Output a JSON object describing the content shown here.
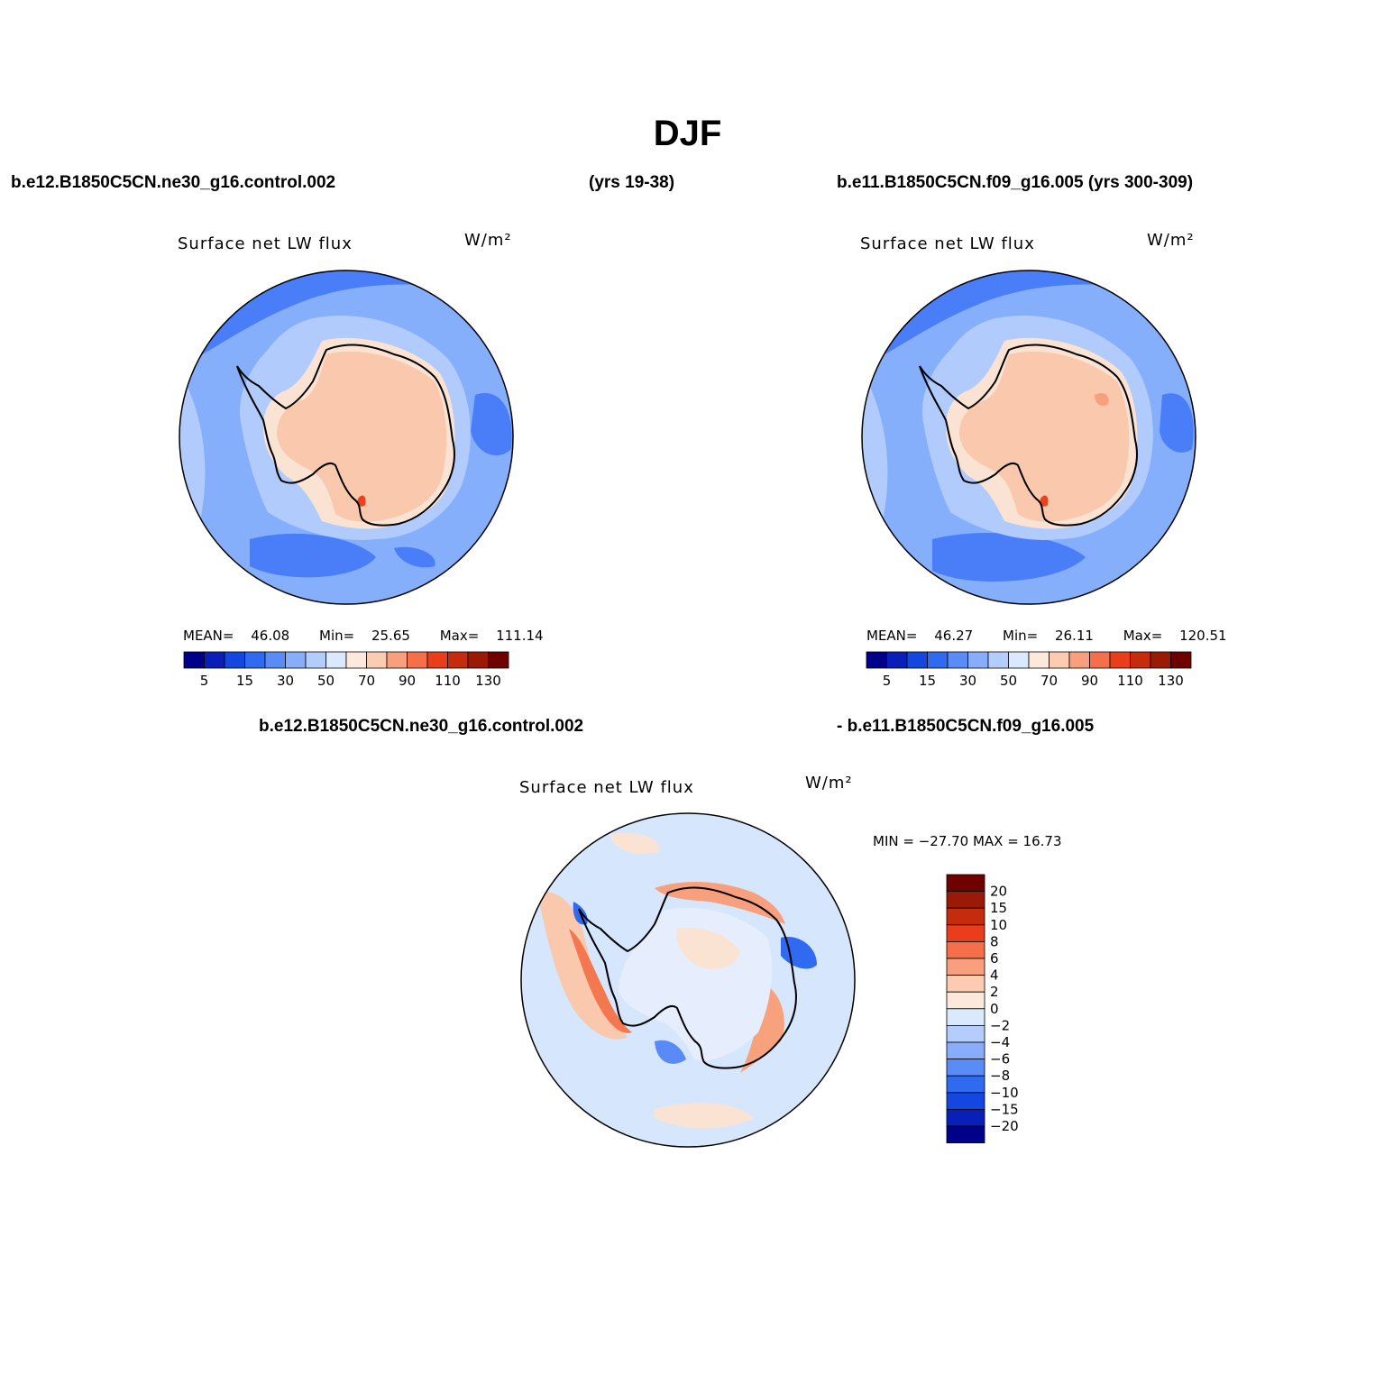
{
  "page": {
    "title": "DJF",
    "header_left_case": "b.e12.B1850C5CN.ne30_g16.control.002",
    "header_left_years": "(yrs 19-38)",
    "header_right": "b.e11.B1850C5CN.f09_g16.005 (yrs 300-309)",
    "diff_header_left": "b.e12.B1850C5CN.ne30_g16.control.002",
    "diff_header_right": "- b.e11.B1850C5CN.f09_g16.005"
  },
  "colors": {
    "land": "#f9c8ad",
    "coast_band": "#fbe3d4",
    "ocean": "#85aefb",
    "ocean_light": "#b1cbfd",
    "ocean_dark": "#4a7ef8",
    "diff_bg": "#d6e6fd",
    "diff_pos": "#f7a27c",
    "diff_neg": "#5a8af6"
  },
  "chart_data": [
    {
      "type": "heatmap",
      "projection": "south polar stereographic",
      "title": "Surface net LW flux",
      "units": "W/m²",
      "mean": "46.08",
      "min": "25.65",
      "max": "111.14",
      "stats_labels": {
        "mean": "MEAN=",
        "min": "Min=",
        "max": "Max="
      },
      "levels": [
        5,
        10,
        15,
        20,
        30,
        40,
        50,
        60,
        70,
        80,
        90,
        100,
        110,
        120,
        130
      ],
      "tick_labels": [
        "5",
        "15",
        "30",
        "50",
        "70",
        "90",
        "110",
        "130"
      ],
      "colors": [
        "#00008a",
        "#0a1eb8",
        "#1447df",
        "#2f6af0",
        "#5a8cf7",
        "#88adfb",
        "#b4cdfd",
        "#dbe9fe",
        "#fde9dc",
        "#fbcbb2",
        "#f8a07d",
        "#f5704a",
        "#e83e1c",
        "#c52b0d",
        "#9a1a05",
        "#6e0000"
      ]
    },
    {
      "type": "heatmap",
      "projection": "south polar stereographic",
      "title": "Surface net LW flux",
      "units": "W/m²",
      "mean": "46.27",
      "min": "26.11",
      "max": "120.51",
      "stats_labels": {
        "mean": "MEAN=",
        "min": "Min=",
        "max": "Max="
      },
      "levels": [
        5,
        10,
        15,
        20,
        30,
        40,
        50,
        60,
        70,
        80,
        90,
        100,
        110,
        120,
        130
      ],
      "tick_labels": [
        "5",
        "15",
        "30",
        "50",
        "70",
        "90",
        "110",
        "130"
      ],
      "colors": [
        "#00008a",
        "#0a1eb8",
        "#1447df",
        "#2f6af0",
        "#5a8cf7",
        "#88adfb",
        "#b4cdfd",
        "#dbe9fe",
        "#fde9dc",
        "#fbcbb2",
        "#f8a07d",
        "#f5704a",
        "#e83e1c",
        "#c52b0d",
        "#9a1a05",
        "#6e0000"
      ]
    },
    {
      "type": "heatmap",
      "projection": "south polar stereographic",
      "title": "Surface net LW flux",
      "units": "W/m²",
      "min_max_label": "MIN = −27.70 MAX =  16.73",
      "min": -27.7,
      "max": 16.73,
      "levels": [
        -20,
        -15,
        -10,
        -8,
        -6,
        -4,
        -2,
        0,
        2,
        4,
        6,
        8,
        10,
        15,
        20
      ],
      "tick_labels": [
        "−20",
        "−15",
        "−10",
        "−8",
        "−6",
        "−4",
        "−2",
        "0",
        "2",
        "4",
        "6",
        "8",
        "10",
        "15",
        "20"
      ],
      "colors": [
        "#00008a",
        "#0a1eb8",
        "#1447df",
        "#2f6af0",
        "#5a8cf7",
        "#88adfb",
        "#b4cdfd",
        "#dbe9fe",
        "#fde9dc",
        "#fbcbb2",
        "#f8a07d",
        "#f5704a",
        "#e83e1c",
        "#c52b0d",
        "#9a1a05",
        "#6e0000"
      ]
    }
  ]
}
